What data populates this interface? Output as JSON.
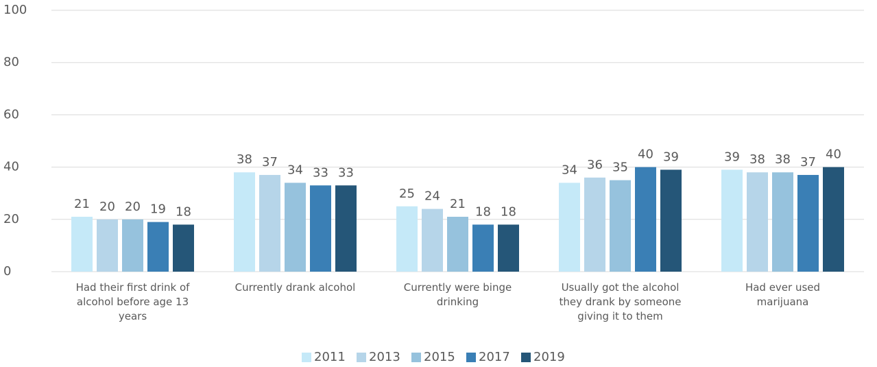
{
  "chart_data": {
    "type": "bar",
    "categories": [
      "Had their first drink of alcohol before age 13 years",
      "Currently drank alcohol",
      "Currently were binge drinking",
      "Usually got the alcohol they drank by someone giving it to them",
      "Had ever used marijuana"
    ],
    "series": [
      {
        "name": "2011",
        "color": "#c5e9f8",
        "values": [
          21,
          38,
          25,
          34,
          39
        ]
      },
      {
        "name": "2013",
        "color": "#b6d5e9",
        "values": [
          20,
          37,
          24,
          36,
          38
        ]
      },
      {
        "name": "2015",
        "color": "#96c2dd",
        "values": [
          20,
          34,
          21,
          35,
          38
        ]
      },
      {
        "name": "2017",
        "color": "#3a7fb5",
        "values": [
          19,
          33,
          18,
          40,
          37
        ]
      },
      {
        "name": "2019",
        "color": "#255678",
        "values": [
          18,
          33,
          18,
          39,
          40
        ]
      }
    ],
    "ylim": [
      0,
      100
    ],
    "yticks": [
      0,
      20,
      40,
      60,
      80,
      100
    ],
    "grid": true,
    "legend": "bottom"
  }
}
